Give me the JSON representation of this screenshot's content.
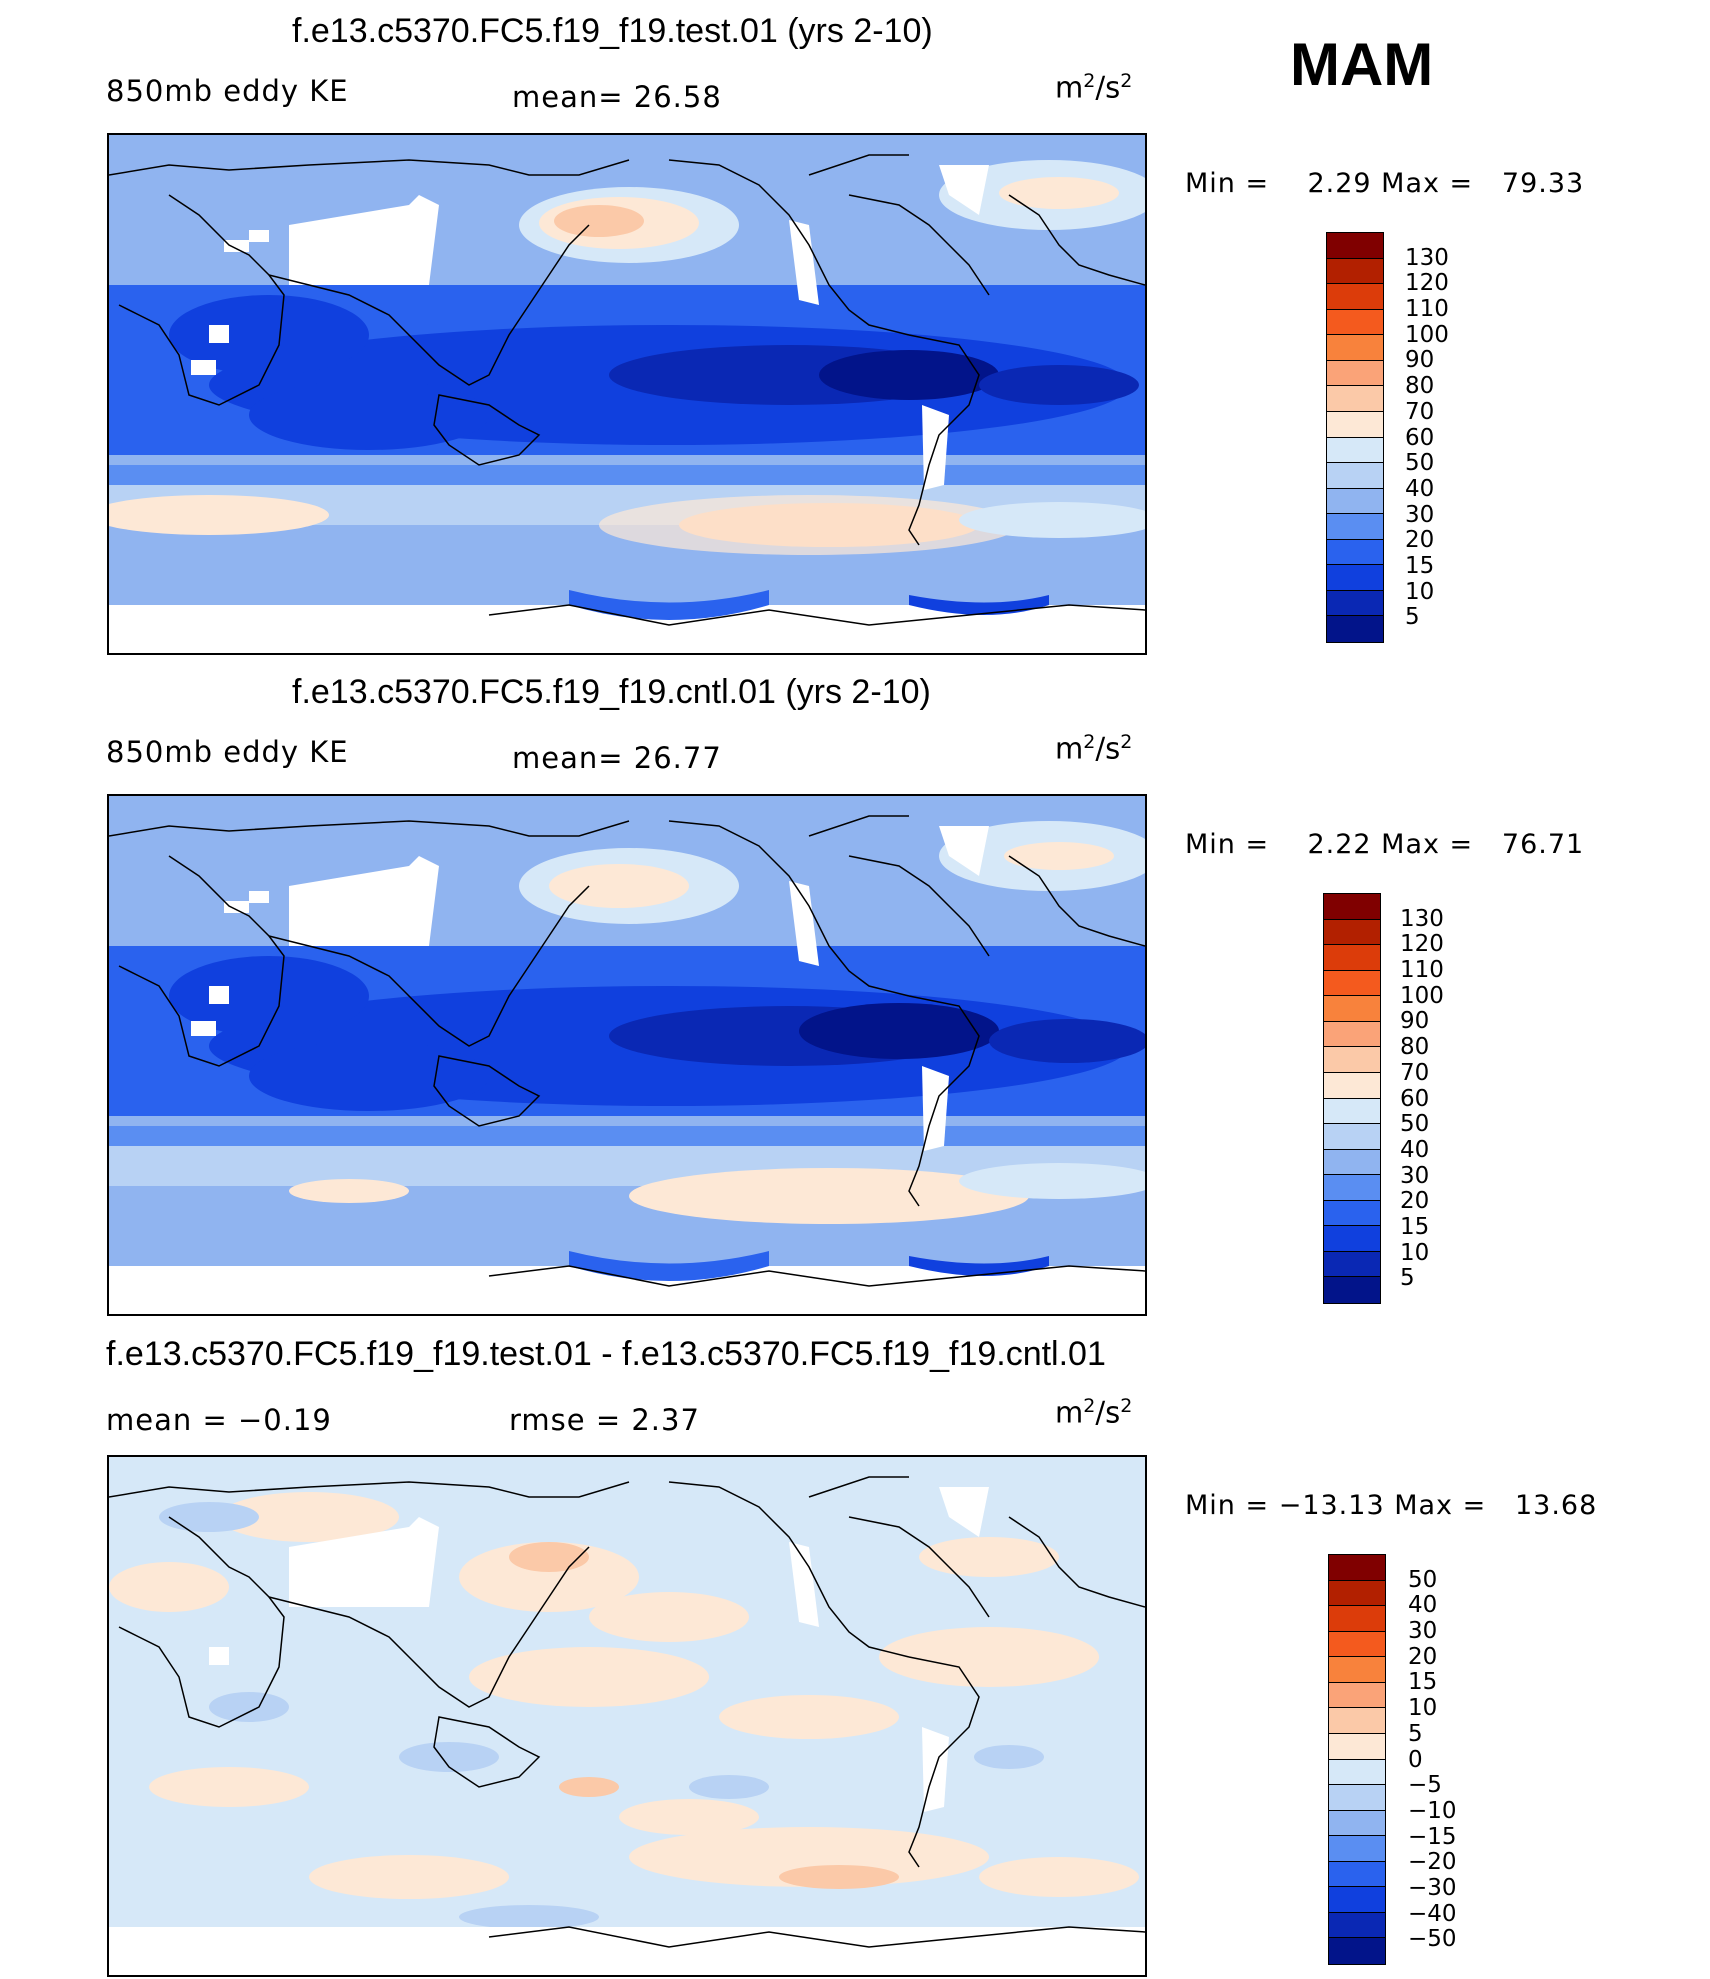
{
  "season": "MAM",
  "panels": [
    {
      "title": "f.e13.c5370.FC5.f19_f19.test.01 (yrs 2-10)",
      "left_label": "850mb eddy KE",
      "center_label": "mean=  26.58",
      "units_base": "m",
      "units_exp1": "2",
      "units_mid": "/s",
      "units_exp2": "2",
      "minmax": "Min =    2.29 Max =   79.33",
      "colorbar": {
        "colors": [
          "#800000",
          "#b22000",
          "#dc3c0a",
          "#f45a1e",
          "#f8823c",
          "#faa378",
          "#fbc9a8",
          "#fde8d6",
          "#d6e8f8",
          "#b8d2f4",
          "#90b4f0",
          "#5a8ef2",
          "#2a62ee",
          "#1040de",
          "#0a28b4",
          "#02148a"
        ],
        "labels": [
          "130",
          "120",
          "110",
          "100",
          "90",
          "80",
          "70",
          "60",
          "50",
          "40",
          "30",
          "20",
          "15",
          "10",
          "5"
        ]
      }
    },
    {
      "title": "f.e13.c5370.FC5.f19_f19.cntl.01 (yrs 2-10)",
      "left_label": "850mb eddy KE",
      "center_label": "mean=  26.77",
      "units_base": "m",
      "units_exp1": "2",
      "units_mid": "/s",
      "units_exp2": "2",
      "minmax": "Min =    2.22 Max =   76.71",
      "colorbar": {
        "colors": [
          "#800000",
          "#b22000",
          "#dc3c0a",
          "#f45a1e",
          "#f8823c",
          "#faa378",
          "#fbc9a8",
          "#fde8d6",
          "#d6e8f8",
          "#b8d2f4",
          "#90b4f0",
          "#5a8ef2",
          "#2a62ee",
          "#1040de",
          "#0a28b4",
          "#02148a"
        ],
        "labels": [
          "130",
          "120",
          "110",
          "100",
          "90",
          "80",
          "70",
          "60",
          "50",
          "40",
          "30",
          "20",
          "15",
          "10",
          "5"
        ]
      }
    },
    {
      "title": "f.e13.c5370.FC5.f19_f19.test.01 - f.e13.c5370.FC5.f19_f19.cntl.01",
      "left_label": "mean =  −0.19",
      "center_label": "rmse =   2.37",
      "units_base": "m",
      "units_exp1": "2",
      "units_mid": "/s",
      "units_exp2": "2",
      "minmax": "Min = −13.13 Max =   13.68",
      "colorbar": {
        "colors": [
          "#800000",
          "#b22000",
          "#dc3c0a",
          "#f45a1e",
          "#f8823c",
          "#faa378",
          "#fbc9a8",
          "#fde8d6",
          "#d6e8f8",
          "#b8d2f4",
          "#90b4f0",
          "#5a8ef2",
          "#2a62ee",
          "#1040de",
          "#0a28b4",
          "#02148a"
        ],
        "labels": [
          "50",
          "40",
          "30",
          "20",
          "15",
          "10",
          "5",
          "0",
          "−5",
          "−10",
          "−15",
          "−20",
          "−30",
          "−40",
          "−50"
        ]
      }
    }
  ]
}
